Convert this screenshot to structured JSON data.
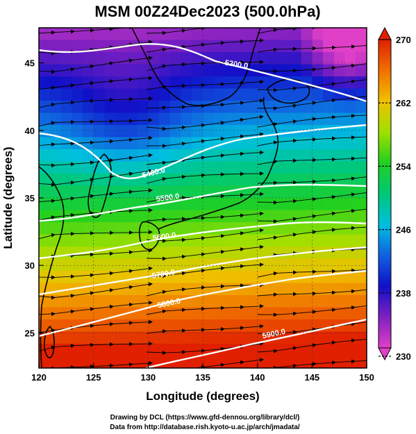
{
  "title": "MSM 00Z24Dec2023 (500.0hPa)",
  "xlabel": "Longitude (degrees)",
  "ylabel": "Latitude  (degrees)",
  "credits": [
    "Drawing by DCL (https://www.gfd-dennou.org/library/dcl/)",
    "Data from http://database.rish.kyoto-u.ac.jp/arch/jmadata/"
  ],
  "chart_data": {
    "type": "heatmap",
    "variable": "temperature with geopotential height contours and streamlines",
    "xlim": [
      120,
      150
    ],
    "ylim": [
      22.4,
      47.6
    ],
    "xticks": [
      120,
      125,
      130,
      135,
      140,
      145,
      150
    ],
    "yticks": [
      25,
      30,
      35,
      40,
      45
    ],
    "colorbar": {
      "min": 230,
      "max": 270,
      "ticks": [
        230,
        238,
        246,
        254,
        262,
        270
      ],
      "colors": [
        "#e040c8",
        "#8020c0",
        "#1010c8",
        "#1060e0",
        "#00c0e0",
        "#00c878",
        "#20d020",
        "#a0e000",
        "#f0c000",
        "#f07000",
        "#e02000"
      ]
    },
    "contours": [
      {
        "label": "5300.0",
        "value": 5300
      },
      {
        "label": "5400.0",
        "value": 5400
      },
      {
        "label": "5500.0",
        "value": 5500
      },
      {
        "label": "5600.0",
        "value": 5600
      },
      {
        "label": "5700.0",
        "value": 5700
      },
      {
        "label": "5800.0",
        "value": 5800
      },
      {
        "label": "5900.0",
        "value": 5900
      }
    ],
    "grid": true
  }
}
